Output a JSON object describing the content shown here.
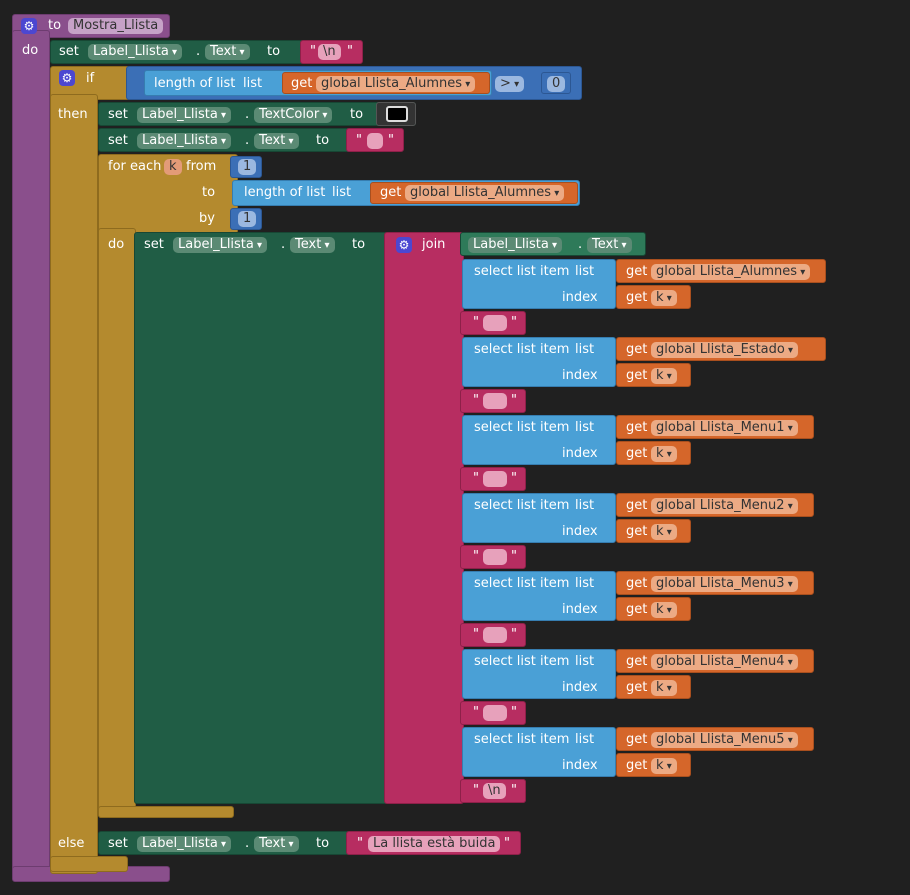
{
  "procedure": {
    "to_label": "to",
    "name": "Mostra_Llista",
    "do_label": "do"
  },
  "keywords": {
    "set": "set",
    "to": "to",
    "if": "if",
    "then": "then",
    "else": "else",
    "do": "do",
    "get": "get",
    "for_each": "for each",
    "from": "from",
    "by": "by",
    "join": "join",
    "length_of_list": "length of list",
    "list": "list",
    "select_list_item": "select list item",
    "index": "index",
    "dot": "."
  },
  "first_set": {
    "component": "Label_Llista",
    "property": "Text",
    "value": "\\n"
  },
  "if_cond": {
    "variable": "global Llista_Alumnes",
    "operator": ">",
    "number": "0"
  },
  "then_sets": [
    {
      "component": "Label_Llista",
      "property": "TextColor"
    },
    {
      "component": "Label_Llista",
      "property": "Text",
      "value": ""
    }
  ],
  "for_each": {
    "var": "k",
    "from": "1",
    "length_var": "global Llista_Alumnes",
    "by": "1"
  },
  "inner_set": {
    "component": "Label_Llista",
    "property": "Text"
  },
  "join_first": {
    "component": "Label_Llista",
    "property": "Text"
  },
  "select_items": [
    {
      "list": "global Llista_Alumnes",
      "index": "k"
    },
    {
      "list": "global Llista_Estado",
      "index": "k"
    },
    {
      "list": "global Llista_Menu1",
      "index": "k"
    },
    {
      "list": "global Llista_Menu2",
      "index": "k"
    },
    {
      "list": "global Llista_Menu3",
      "index": "k"
    },
    {
      "list": "global Llista_Menu4",
      "index": "k"
    },
    {
      "list": "global Llista_Menu5",
      "index": "k"
    }
  ],
  "join_last": "\\n",
  "else_set": {
    "component": "Label_Llista",
    "property": "Text",
    "value": "La llista està buida"
  },
  "colors": {
    "procedure": "#8a4f8c",
    "control": "#b48a2e",
    "setter": "#205d45",
    "math": "#3b6fb6",
    "list": "#4aa0d6",
    "getter": "#d5662a",
    "text": "#b72d61",
    "gear": "#4c47d1"
  }
}
